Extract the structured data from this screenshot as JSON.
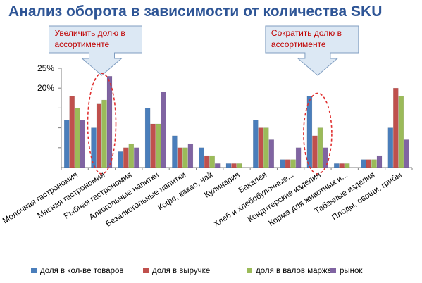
{
  "chart_data": {
    "type": "bar",
    "title": "Анализ оборота в зависимости от количества SKU",
    "categories": [
      "Молочная гастрономия",
      "Мясная гастрономия",
      "Рыбная гастрономия",
      "Алкогольные напитки",
      "Безалкогольные напитки",
      "Кофе, какао, чай",
      "Кулинария",
      "Бакалея",
      "Хлеб и хлебобулочные...",
      "Кондитерские изделия",
      "Корма для животных и...",
      "Табачные изделия",
      "Плоды, овощи, грибы"
    ],
    "series": [
      {
        "name": "доля в кол-ве товаров",
        "color": "#4a7ebb",
        "values": [
          12,
          10,
          4,
          15,
          8,
          5,
          1,
          12,
          2,
          18,
          1,
          2,
          10
        ]
      },
      {
        "name": "доля в выручке",
        "color": "#c0504d",
        "values": [
          18,
          16,
          5,
          11,
          5,
          3,
          1,
          10,
          2,
          8,
          1,
          2,
          20
        ]
      },
      {
        "name": "доля в валов марже",
        "color": "#9bbb59",
        "values": [
          15,
          17,
          6,
          11,
          5,
          3,
          1,
          10,
          2,
          10,
          1,
          2,
          18
        ]
      },
      {
        "name": "рынок",
        "color": "#8064a2",
        "values": [
          12,
          23,
          5,
          19,
          6,
          1,
          0,
          7,
          5,
          5,
          0,
          3,
          7
        ]
      }
    ],
    "ylim": [
      0,
      25
    ],
    "yticks": [
      {
        "value": 20,
        "label": "20%"
      },
      {
        "value": 25,
        "label": "25%"
      }
    ],
    "legend_position": "bottom",
    "annotations": [
      {
        "text": [
          "Увеличить долю в",
          "ассортименте"
        ],
        "category": "Мясная гастрономия"
      },
      {
        "text": [
          "Сократить долю в",
          "ассортименте"
        ],
        "category": "Кондитерские изделия"
      }
    ],
    "colors": {
      "title": "#2e5596",
      "callout_fill": "#dce8f4",
      "callout_border": "#7f9dc0",
      "callout_text": "#c00000",
      "highlight_ellipse": "#e03030"
    }
  }
}
